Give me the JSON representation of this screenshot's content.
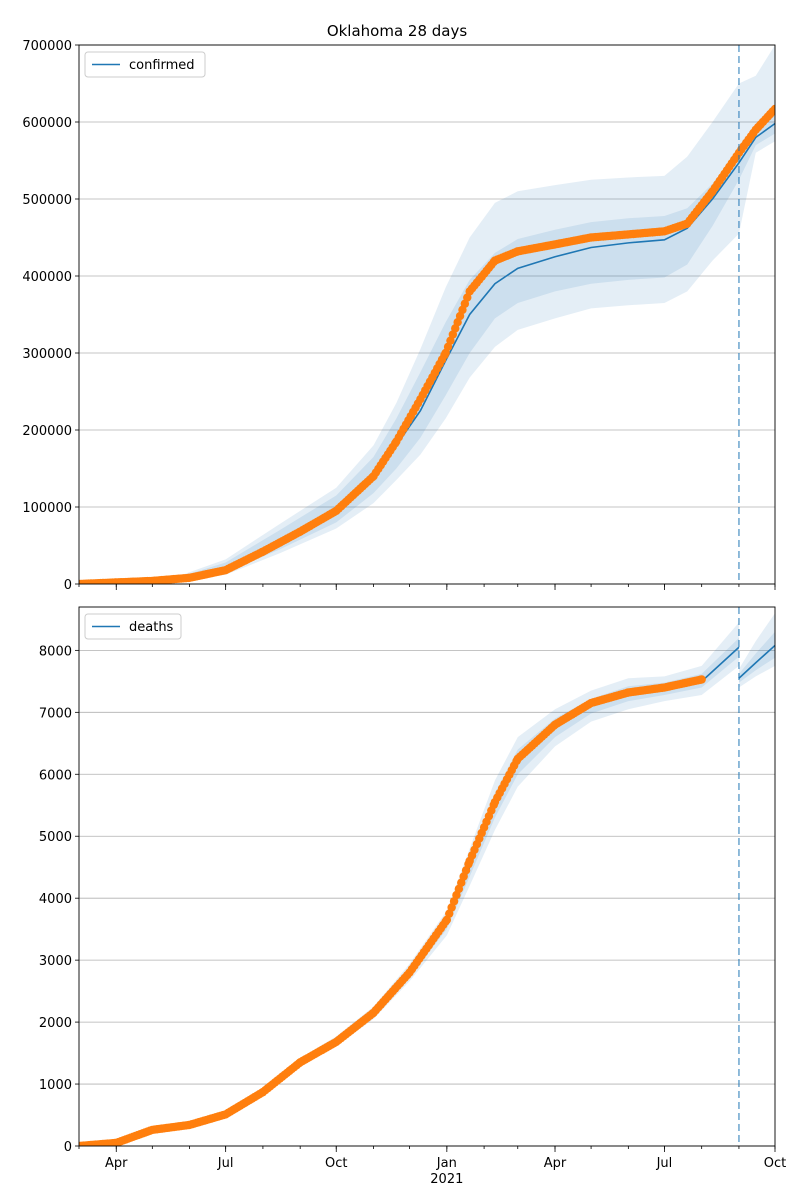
{
  "figure_title": "Oklahoma 28 days",
  "colors": {
    "model": "#1f77b4",
    "observed": "#ff7f0e",
    "band": "#1f77b4",
    "grid": "#b0b0b0",
    "forecast_line": "#1f77b4"
  },
  "chart_data": [
    {
      "type": "line",
      "panel": "top",
      "legend": [
        "confirmed"
      ],
      "legend_position": "upper-left",
      "grid": "horizontal",
      "xlim": [
        "2020-03-01",
        "2021-10-01"
      ],
      "ylim": [
        0,
        700000
      ],
      "yticks": [
        0,
        100000,
        200000,
        300000,
        400000,
        500000,
        600000,
        700000
      ],
      "forecast_start": "2021-09-01",
      "model": {
        "name": "confirmed",
        "x": [
          "2020-03-01",
          "2020-05-15",
          "2020-07-01",
          "2020-08-15",
          "2020-10-01",
          "2020-11-01",
          "2020-11-20",
          "2020-12-10",
          "2020-12-31",
          "2021-01-20",
          "2021-02-10",
          "2021-03-01",
          "2021-04-01",
          "2021-05-01",
          "2021-06-01",
          "2021-07-01",
          "2021-07-20",
          "2021-08-10",
          "2021-09-01",
          "2021-09-15",
          "2021-10-01"
        ],
        "y": [
          0,
          4000,
          20000,
          55000,
          95000,
          140000,
          180000,
          225000,
          290000,
          350000,
          390000,
          410000,
          425000,
          437000,
          443000,
          447000,
          462000,
          500000,
          547000,
          580000,
          598000
        ],
        "upper_1": [
          0,
          5000,
          28000,
          70000,
          115000,
          165000,
          215000,
          275000,
          340000,
          395000,
          430000,
          448000,
          460000,
          470000,
          475000,
          478000,
          488000,
          520000,
          565000,
          590000,
          612000
        ],
        "lower_1": [
          0,
          3000,
          15000,
          45000,
          80000,
          118000,
          150000,
          190000,
          245000,
          300000,
          345000,
          365000,
          380000,
          390000,
          395000,
          398000,
          415000,
          465000,
          525000,
          570000,
          585000
        ],
        "upper_2": [
          0,
          6000,
          32000,
          78000,
          125000,
          180000,
          235000,
          305000,
          385000,
          450000,
          495000,
          510000,
          518000,
          525000,
          528000,
          530000,
          555000,
          600000,
          650000,
          660000,
          700000
        ],
        "lower_2": [
          0,
          2000,
          12000,
          40000,
          72000,
          105000,
          135000,
          168000,
          215000,
          268000,
          308000,
          330000,
          345000,
          358000,
          362000,
          365000,
          380000,
          420000,
          455000,
          560000,
          575000
        ]
      },
      "observed": {
        "x": [
          "2020-03-01",
          "2020-04-01",
          "2020-05-01",
          "2020-06-01",
          "2020-07-01",
          "2020-08-01",
          "2020-09-01",
          "2020-10-01",
          "2020-11-01",
          "2020-11-20",
          "2020-12-10",
          "2020-12-31",
          "2021-01-20",
          "2021-02-10",
          "2021-03-01",
          "2021-04-01",
          "2021-05-01",
          "2021-06-01",
          "2021-07-01",
          "2021-07-20",
          "2021-08-10",
          "2021-09-01",
          "2021-09-15",
          "2021-10-01"
        ],
        "y": [
          0,
          2000,
          4000,
          8000,
          18000,
          42000,
          68000,
          95000,
          140000,
          185000,
          240000,
          300000,
          380000,
          420000,
          432000,
          441000,
          450000,
          454000,
          458000,
          468000,
          510000,
          560000,
          590000,
          617000
        ]
      }
    },
    {
      "type": "line",
      "panel": "bottom",
      "legend": [
        "deaths"
      ],
      "legend_position": "upper-left",
      "grid": "horizontal",
      "xlim": [
        "2020-03-01",
        "2021-10-01"
      ],
      "ylim": [
        0,
        8700
      ],
      "yticks": [
        0,
        1000,
        2000,
        3000,
        4000,
        5000,
        6000,
        7000,
        8000
      ],
      "xtick_labels": [
        "Apr",
        "Jul",
        "Oct",
        "Jan",
        "Apr",
        "Jul",
        "Oct"
      ],
      "xtick_dates": [
        "2020-04-01",
        "2020-07-01",
        "2020-10-01",
        "2021-01-01",
        "2021-04-01",
        "2021-07-01",
        "2021-10-01"
      ],
      "year_label": "2021",
      "forecast_start": "2021-09-01",
      "model": {
        "name": "deaths",
        "x": [
          "2020-03-01",
          "2020-04-01",
          "2020-05-01",
          "2020-06-01",
          "2020-07-01",
          "2020-08-01",
          "2020-09-01",
          "2020-10-01",
          "2020-11-01",
          "2020-12-01",
          "2021-01-01",
          "2021-01-20",
          "2021-02-10",
          "2021-03-01",
          "2021-04-01",
          "2021-05-01",
          "2021-06-01",
          "2021-07-01",
          "2021-08-01",
          "2021-09-01"
        ],
        "y": [
          0,
          60,
          270,
          350,
          520,
          880,
          1360,
          1690,
          2150,
          2800,
          3600,
          4500,
          5500,
          6200,
          6750,
          7100,
          7300,
          7380,
          7500,
          8050
        ],
        "upper_1": [
          0,
          65,
          280,
          360,
          535,
          900,
          1390,
          1730,
          2200,
          2870,
          3700,
          4650,
          5700,
          6400,
          6900,
          7220,
          7420,
          7480,
          7620,
          8200
        ],
        "lower_1": [
          0,
          55,
          260,
          340,
          505,
          860,
          1330,
          1650,
          2100,
          2730,
          3500,
          4350,
          5300,
          6000,
          6600,
          6980,
          7180,
          7280,
          7400,
          7900
        ],
        "upper_2": [
          0,
          70,
          290,
          370,
          550,
          920,
          1420,
          1770,
          2250,
          2940,
          3800,
          4800,
          5900,
          6600,
          7050,
          7350,
          7550,
          7580,
          7750,
          8450
        ],
        "lower_2": [
          0,
          50,
          250,
          330,
          490,
          840,
          1300,
          1610,
          2050,
          2660,
          3400,
          4200,
          5100,
          5800,
          6450,
          6850,
          7050,
          7180,
          7280,
          7750
        ]
      },
      "forecast": {
        "x": [
          "2021-09-01",
          "2021-09-15",
          "2021-10-01"
        ],
        "y": [
          7550,
          7800,
          8080
        ],
        "upper_1": [
          7620,
          7950,
          8300
        ],
        "lower_1": [
          7480,
          7680,
          7880
        ],
        "upper_2": [
          7700,
          8150,
          8600
        ],
        "lower_2": [
          7400,
          7580,
          7750
        ]
      },
      "observed": {
        "x": [
          "2020-03-01",
          "2020-04-01",
          "2020-05-01",
          "2020-06-01",
          "2020-07-01",
          "2020-08-01",
          "2020-09-01",
          "2020-10-01",
          "2020-11-01",
          "2020-12-01",
          "2021-01-01",
          "2021-01-20",
          "2021-02-10",
          "2021-03-01",
          "2021-04-01",
          "2021-05-01",
          "2021-06-01",
          "2021-07-01",
          "2021-08-01"
        ],
        "y": [
          0,
          50,
          260,
          340,
          510,
          870,
          1350,
          1680,
          2150,
          2800,
          3650,
          4600,
          5550,
          6250,
          6800,
          7150,
          7320,
          7400,
          7530
        ]
      }
    }
  ]
}
